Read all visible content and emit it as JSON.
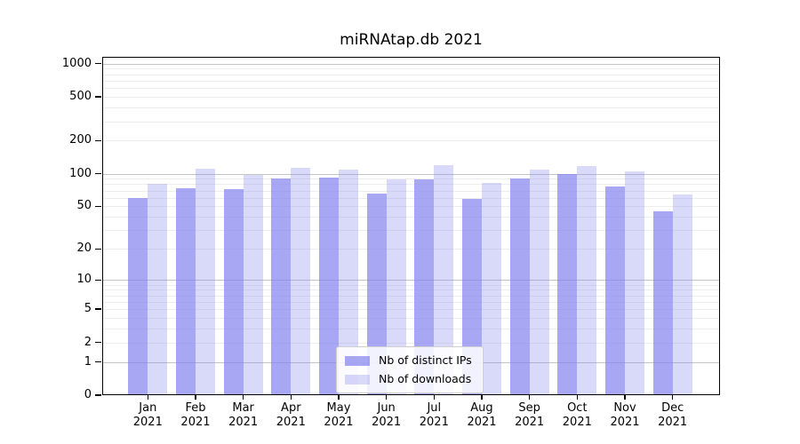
{
  "chart_data": {
    "type": "bar",
    "title": "miRNAtap.db 2021",
    "categories": [
      "Jan 2021",
      "Feb 2021",
      "Mar 2021",
      "Apr 2021",
      "May 2021",
      "Jun 2021",
      "Jul 2021",
      "Aug 2021",
      "Sep 2021",
      "Oct 2021",
      "Nov 2021",
      "Dec 2021"
    ],
    "series": [
      {
        "name": "Nb of distinct IPs",
        "color": "rgba(130,130,238,0.70)",
        "values": [
          60,
          74,
          72,
          90,
          92,
          66,
          89,
          59,
          90,
          100,
          77,
          45
        ]
      },
      {
        "name": "Nb of downloads",
        "color": "rgba(130,130,238,0.30)",
        "values": [
          80,
          110,
          97,
          113,
          108,
          88,
          120,
          82,
          108,
          118,
          105,
          65
        ]
      }
    ],
    "y_axis": {
      "scale": "log1p",
      "ticks": [
        0,
        1,
        2,
        5,
        10,
        20,
        50,
        100,
        200,
        500,
        1000
      ],
      "max": 1150
    },
    "x_axis": {
      "tick_labels_two_lines": true
    },
    "grid": {
      "orientation": "horizontal",
      "major_color": "#c4c4c4",
      "minor_color": "#ededed",
      "major_at": [
        1,
        10,
        100,
        1000
      ]
    },
    "legend": {
      "position": "bottom-center"
    }
  }
}
